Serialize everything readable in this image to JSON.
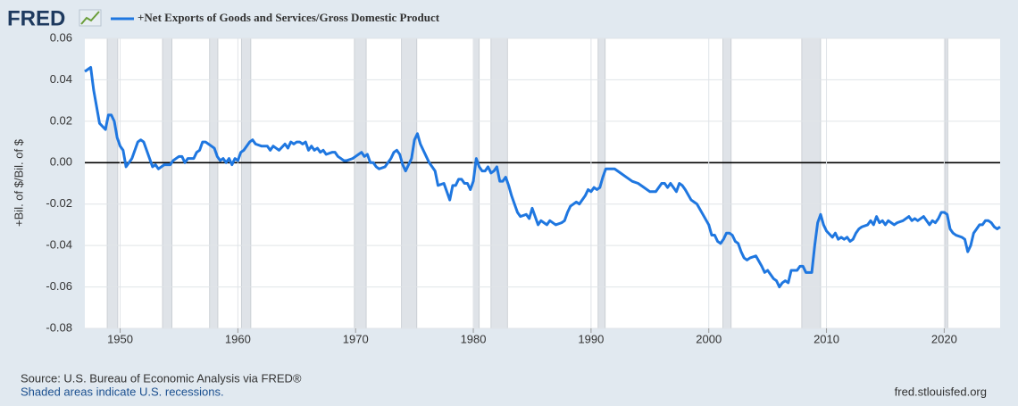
{
  "logo": "FRED",
  "chart_data": {
    "type": "line",
    "legend": "+Net Exports of Goods and Services/Gross Domestic Product",
    "y_label": "+Bil. of $/Bil. of $",
    "source": "Source: U.S. Bureau of Economic Analysis via FRED®",
    "note": "Shaded areas indicate U.S. recessions.",
    "site": "fred.stlouisfed.org",
    "xlim": [
      1947,
      2024.75
    ],
    "ylim": [
      -0.08,
      0.06
    ],
    "xticks": [
      1950,
      1960,
      1970,
      1980,
      1990,
      2000,
      2010,
      2020
    ],
    "yticks": [
      -0.08,
      -0.06,
      -0.04,
      -0.02,
      {
        "value": 0,
        "label": "0.00"
      },
      0.02,
      0.04,
      0.06
    ],
    "grid": true,
    "recessions": [
      [
        1948.9,
        1949.8
      ],
      [
        1953.6,
        1954.4
      ],
      [
        1957.6,
        1958.3
      ],
      [
        1960.3,
        1961.1
      ],
      [
        1969.9,
        1970.9
      ],
      [
        1973.9,
        1975.2
      ],
      [
        1980.0,
        1980.5
      ],
      [
        1981.5,
        1982.9
      ],
      [
        1990.6,
        1991.2
      ],
      [
        2001.2,
        2001.9
      ],
      [
        2007.9,
        2009.5
      ],
      [
        2020.1,
        2020.3
      ]
    ],
    "x": [
      1947,
      1947.5,
      1947.75,
      1948.25,
      1948.75,
      1949,
      1949.25,
      1949.5,
      1949.75,
      1950,
      1950.25,
      1950.5,
      1950.75,
      1951,
      1951.25,
      1951.5,
      1951.75,
      1952,
      1952.25,
      1952.5,
      1952.75,
      1953,
      1953.25,
      1953.5,
      1953.75,
      1954.25,
      1954.5,
      1955,
      1955.25,
      1955.5,
      1955.75,
      1956.25,
      1956.5,
      1956.75,
      1957,
      1957.25,
      1957.5,
      1957.75,
      1958,
      1958.25,
      1958.5,
      1958.75,
      1959,
      1959.25,
      1959.5,
      1959.75,
      1960,
      1960.25,
      1960.5,
      1961,
      1961.25,
      1961.5,
      1962,
      1962.5,
      1962.75,
      1963,
      1963.25,
      1963.5,
      1964,
      1964.25,
      1964.5,
      1964.75,
      1965,
      1965.25,
      1965.5,
      1965.75,
      1966,
      1966.25,
      1966.5,
      1966.75,
      1967,
      1967.25,
      1967.5,
      1968,
      1968.25,
      1968.5,
      1969,
      1969.25,
      1969.75,
      1970,
      1970.25,
      1970.5,
      1970.75,
      1971,
      1971.25,
      1971.5,
      1971.75,
      1972,
      1972.5,
      1972.75,
      1973,
      1973.25,
      1973.5,
      1973.75,
      1974,
      1974.25,
      1974.5,
      1974.75,
      1975,
      1975.25,
      1975.5,
      1975.75,
      1976,
      1976.25,
      1976.5,
      1976.75,
      1977,
      1977.5,
      1977.75,
      1978,
      1978.25,
      1978.5,
      1978.75,
      1979,
      1979.25,
      1979.5,
      1979.75,
      1980,
      1980.25,
      1980.5,
      1980.75,
      1981,
      1981.25,
      1981.5,
      1981.75,
      1982,
      1982.25,
      1982.5,
      1982.75,
      1983,
      1983.25,
      1983.5,
      1983.75,
      1984,
      1984.5,
      1984.75,
      1985,
      1985.25,
      1985.5,
      1985.75,
      1986,
      1986.25,
      1986.5,
      1987,
      1987.5,
      1987.75,
      1988,
      1988.25,
      1988.75,
      1989,
      1989.5,
      1989.75,
      1990,
      1990.25,
      1990.5,
      1990.75,
      1991,
      1991.25,
      1991.75,
      1992,
      1992.5,
      1993,
      1993.5,
      1994,
      1994.5,
      1995,
      1995.5,
      1996,
      1996.25,
      1996.5,
      1996.75,
      1997,
      1997.25,
      1997.5,
      1997.75,
      1998,
      1998.5,
      1998.75,
      1999,
      1999.5,
      2000,
      2000.25,
      2000.5,
      2000.75,
      2001,
      2001.25,
      2001.5,
      2001.75,
      2002,
      2002.25,
      2002.5,
      2002.75,
      2003,
      2003.25,
      2003.5,
      2004,
      2004.5,
      2004.75,
      2005,
      2005.5,
      2005.75,
      2006,
      2006.25,
      2006.5,
      2006.75,
      2007,
      2007.5,
      2007.75,
      2008,
      2008.25,
      2008.75,
      2009,
      2009.25,
      2009.5,
      2009.75,
      2010,
      2010.5,
      2010.75,
      2011,
      2011.25,
      2011.5,
      2011.75,
      2012,
      2012.25,
      2012.5,
      2012.75,
      2013,
      2013.5,
      2013.75,
      2014,
      2014.25,
      2014.5,
      2014.75,
      2015,
      2015.25,
      2015.5,
      2015.75,
      2016,
      2016.5,
      2017,
      2017.25,
      2017.5,
      2017.75,
      2018,
      2018.25,
      2018.5,
      2018.75,
      2019,
      2019.25,
      2019.5,
      2019.75,
      2020,
      2020.25,
      2020.5,
      2020.75,
      2021,
      2021.5,
      2021.75,
      2022,
      2022.25,
      2022.5,
      2022.75,
      2023,
      2023.25,
      2023.5,
      2023.75,
      2024,
      2024.25,
      2024.5,
      2024.75
    ],
    "series": [
      {
        "name": "+Net Exports of Goods and Services/Gross Domestic Product",
        "color": "#1f77e0",
        "values": [
          0.044,
          0.046,
          0.035,
          0.019,
          0.016,
          0.023,
          0.023,
          0.02,
          0.012,
          0.008,
          0.006,
          -0.002,
          0.0,
          0.002,
          0.006,
          0.01,
          0.011,
          0.01,
          0.006,
          0.002,
          -0.002,
          -0.001,
          -0.003,
          -0.002,
          -0.001,
          -0.001,
          0.001,
          0.003,
          0.003,
          0.0,
          0.002,
          0.002,
          0.005,
          0.006,
          0.01,
          0.01,
          0.009,
          0.008,
          0.007,
          0.003,
          0.001,
          0.002,
          0.0,
          0.002,
          -0.001,
          0.002,
          0.001,
          0.005,
          0.006,
          0.01,
          0.011,
          0.009,
          0.008,
          0.008,
          0.006,
          0.008,
          0.007,
          0.006,
          0.009,
          0.007,
          0.01,
          0.009,
          0.01,
          0.01,
          0.009,
          0.01,
          0.006,
          0.008,
          0.006,
          0.007,
          0.005,
          0.006,
          0.004,
          0.005,
          0.005,
          0.003,
          0.001,
          0.001,
          0.002,
          0.003,
          0.004,
          0.005,
          0.003,
          0.004,
          0.0,
          0.0,
          -0.002,
          -0.003,
          -0.002,
          0.0,
          0.002,
          0.005,
          0.006,
          0.004,
          -0.001,
          -0.004,
          -0.001,
          0.002,
          0.011,
          0.014,
          0.009,
          0.006,
          0.003,
          0.0,
          -0.002,
          -0.004,
          -0.011,
          -0.01,
          -0.014,
          -0.018,
          -0.011,
          -0.011,
          -0.008,
          -0.008,
          -0.01,
          -0.01,
          -0.013,
          -0.009,
          0.002,
          -0.002,
          -0.004,
          -0.004,
          -0.002,
          -0.005,
          -0.004,
          -0.002,
          -0.009,
          -0.009,
          -0.007,
          -0.011,
          -0.016,
          -0.02,
          -0.024,
          -0.026,
          -0.025,
          -0.027,
          -0.022,
          -0.026,
          -0.03,
          -0.028,
          -0.029,
          -0.03,
          -0.028,
          -0.03,
          -0.029,
          -0.028,
          -0.024,
          -0.021,
          -0.019,
          -0.02,
          -0.016,
          -0.013,
          -0.014,
          -0.012,
          -0.013,
          -0.012,
          -0.007,
          -0.003,
          -0.003,
          -0.003,
          -0.005,
          -0.007,
          -0.009,
          -0.01,
          -0.012,
          -0.014,
          -0.014,
          -0.01,
          -0.01,
          -0.012,
          -0.01,
          -0.012,
          -0.014,
          -0.01,
          -0.011,
          -0.013,
          -0.018,
          -0.019,
          -0.02,
          -0.025,
          -0.03,
          -0.035,
          -0.035,
          -0.038,
          -0.039,
          -0.037,
          -0.034,
          -0.034,
          -0.035,
          -0.038,
          -0.039,
          -0.043,
          -0.046,
          -0.047,
          -0.046,
          -0.045,
          -0.05,
          -0.053,
          -0.052,
          -0.056,
          -0.057,
          -0.06,
          -0.058,
          -0.057,
          -0.058,
          -0.052,
          -0.052,
          -0.05,
          -0.05,
          -0.053,
          -0.053,
          -0.04,
          -0.029,
          -0.025,
          -0.03,
          -0.033,
          -0.036,
          -0.034,
          -0.037,
          -0.036,
          -0.037,
          -0.036,
          -0.038,
          -0.037,
          -0.034,
          -0.032,
          -0.031,
          -0.03,
          -0.028,
          -0.03,
          -0.026,
          -0.029,
          -0.028,
          -0.03,
          -0.028,
          -0.029,
          -0.03,
          -0.029,
          -0.028,
          -0.026,
          -0.028,
          -0.027,
          -0.028,
          -0.027,
          -0.026,
          -0.028,
          -0.03,
          -0.028,
          -0.029,
          -0.027,
          -0.024,
          -0.024,
          -0.025,
          -0.032,
          -0.034,
          -0.035,
          -0.036,
          -0.037,
          -0.043,
          -0.04,
          -0.034,
          -0.032,
          -0.03,
          -0.03,
          -0.028,
          -0.028,
          -0.029,
          -0.031,
          -0.032,
          -0.031
        ]
      }
    ]
  }
}
